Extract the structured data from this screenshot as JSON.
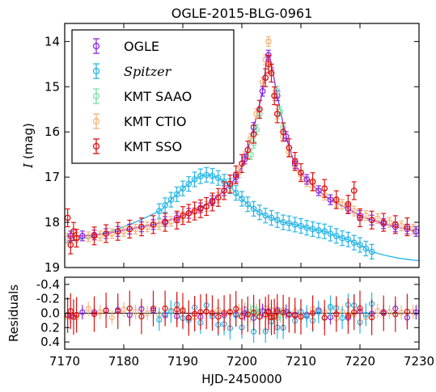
{
  "chart_data": {
    "type": "scatter",
    "title": "OGLE-2015-BLG-0961",
    "xlabel": "HJD-2450000",
    "xlim": [
      7170,
      7230
    ],
    "xticks": [
      7170,
      7180,
      7190,
      7200,
      7210,
      7220,
      7230
    ],
    "main_panel": {
      "ylabel_italic": "I",
      "ylabel_rest": " (mag)",
      "ylim": [
        19,
        13.6
      ],
      "yticks": [
        14,
        15,
        16,
        17,
        18,
        19
      ],
      "legend": {
        "placement": "upper-left"
      },
      "series": [
        {
          "name": "OGLE",
          "color": "#8a2be2",
          "style": "normal",
          "x": [
            7171,
            7173,
            7175,
            7177,
            7179,
            7181,
            7183,
            7185,
            7187,
            7189,
            7191,
            7193,
            7195,
            7197,
            7199,
            7200.5,
            7202,
            7203.5,
            7204.5,
            7206,
            7207.5,
            7209,
            7211,
            7213,
            7215,
            7218,
            7220,
            7222,
            7224,
            7226,
            7228,
            7229.5
          ],
          "y": [
            18.3,
            18.3,
            18.28,
            18.25,
            18.2,
            18.15,
            18.1,
            18.05,
            17.98,
            17.9,
            17.8,
            17.68,
            17.52,
            17.3,
            17.0,
            16.6,
            15.9,
            15.1,
            14.3,
            15.2,
            16.1,
            16.7,
            17.05,
            17.3,
            17.5,
            17.7,
            17.85,
            17.95,
            18.03,
            18.1,
            18.15,
            18.2
          ]
        },
        {
          "name": "Spitzer",
          "color": "#29b6e6",
          "style": "italic",
          "x": [
            7186,
            7187,
            7188,
            7189,
            7190,
            7191,
            7192,
            7193,
            7194,
            7195,
            7196,
            7197,
            7198,
            7199,
            7200,
            7201,
            7202,
            7203,
            7204,
            7205,
            7206,
            7207,
            7208,
            7209,
            7210,
            7211,
            7212,
            7213,
            7214,
            7215,
            7216,
            7217,
            7218,
            7219,
            7220,
            7221,
            7222
          ],
          "y": [
            17.75,
            17.62,
            17.5,
            17.38,
            17.25,
            17.15,
            17.05,
            16.98,
            16.95,
            16.97,
            17.02,
            17.1,
            17.2,
            17.35,
            17.48,
            17.6,
            17.7,
            17.78,
            17.85,
            17.9,
            17.95,
            18.0,
            18.02,
            18.05,
            18.08,
            18.12,
            18.15,
            18.18,
            18.2,
            18.25,
            18.3,
            18.35,
            18.38,
            18.45,
            18.5,
            18.58,
            18.65
          ]
        },
        {
          "name": "KMT SAAO",
          "color": "#7de0a8",
          "style": "normal",
          "x": [
            7201.5,
            7202,
            7202.5,
            7203,
            7206,
            7206.5,
            7207
          ],
          "y": [
            16.5,
            16.25,
            15.95,
            15.6,
            15.1,
            15.55,
            15.9
          ]
        },
        {
          "name": "KMT CTIO",
          "color": "#f5b47a",
          "style": "normal",
          "x": [
            7170.5,
            7172,
            7174,
            7176,
            7178,
            7180,
            7182,
            7184,
            7186,
            7188,
            7190,
            7192,
            7194,
            7196,
            7198,
            7199.5,
            7200.5,
            7201.5,
            7202.5,
            7203.5,
            7204,
            7204.5,
            7205,
            7205.5,
            7206,
            7207,
            7208,
            7209,
            7210,
            7211,
            7212,
            7213,
            7214,
            7215,
            7216,
            7217,
            7218,
            7219,
            7221,
            7223,
            7225,
            7227,
            7229
          ],
          "y": [
            18.35,
            18.33,
            18.32,
            18.3,
            18.25,
            18.2,
            18.15,
            18.1,
            18.05,
            17.98,
            17.88,
            17.78,
            17.65,
            17.45,
            17.2,
            16.9,
            16.55,
            16.15,
            15.6,
            14.9,
            14.4,
            14.0,
            14.6,
            15.2,
            15.6,
            16.1,
            16.45,
            16.75,
            16.95,
            17.1,
            17.2,
            17.3,
            17.4,
            17.5,
            17.55,
            17.6,
            17.65,
            17.75,
            17.85,
            17.92,
            18.0,
            18.08,
            18.15
          ]
        },
        {
          "name": "KMT SSO",
          "color": "#dd1111",
          "style": "normal",
          "x": [
            7170.5,
            7171,
            7171.5,
            7172,
            7175,
            7177,
            7179,
            7181,
            7183,
            7185,
            7187,
            7189,
            7190,
            7191,
            7192,
            7193,
            7194,
            7195,
            7196,
            7197,
            7198,
            7199,
            7200,
            7201,
            7202,
            7203,
            7204,
            7204.5,
            7205,
            7205.5,
            7206,
            7207,
            7208,
            7209,
            7210,
            7212,
            7214,
            7216,
            7218,
            7219,
            7220,
            7222,
            7224,
            7226,
            7228
          ],
          "y": [
            17.9,
            18.5,
            18.2,
            18.35,
            18.3,
            18.25,
            18.2,
            18.15,
            18.1,
            18.05,
            18.0,
            17.95,
            17.85,
            17.8,
            17.75,
            17.7,
            17.65,
            17.55,
            17.45,
            17.3,
            17.15,
            16.95,
            16.7,
            16.4,
            16.05,
            15.5,
            14.8,
            14.5,
            14.7,
            15.2,
            15.6,
            16.0,
            16.35,
            16.65,
            16.9,
            17.1,
            17.25,
            17.5,
            17.6,
            17.3,
            17.9,
            17.95,
            18.0,
            18.05,
            18.1
          ]
        }
      ]
    },
    "residual_panel": {
      "ylabel": "Residuals",
      "ylim": [
        0.5,
        -0.5
      ],
      "yticks": [
        -0.4,
        -0.2,
        0.0,
        0.2,
        0.4
      ],
      "ytick_labels": [
        "-0.4",
        "-0.2",
        "0.0",
        "0.2",
        "0.4"
      ]
    },
    "grid": false
  }
}
